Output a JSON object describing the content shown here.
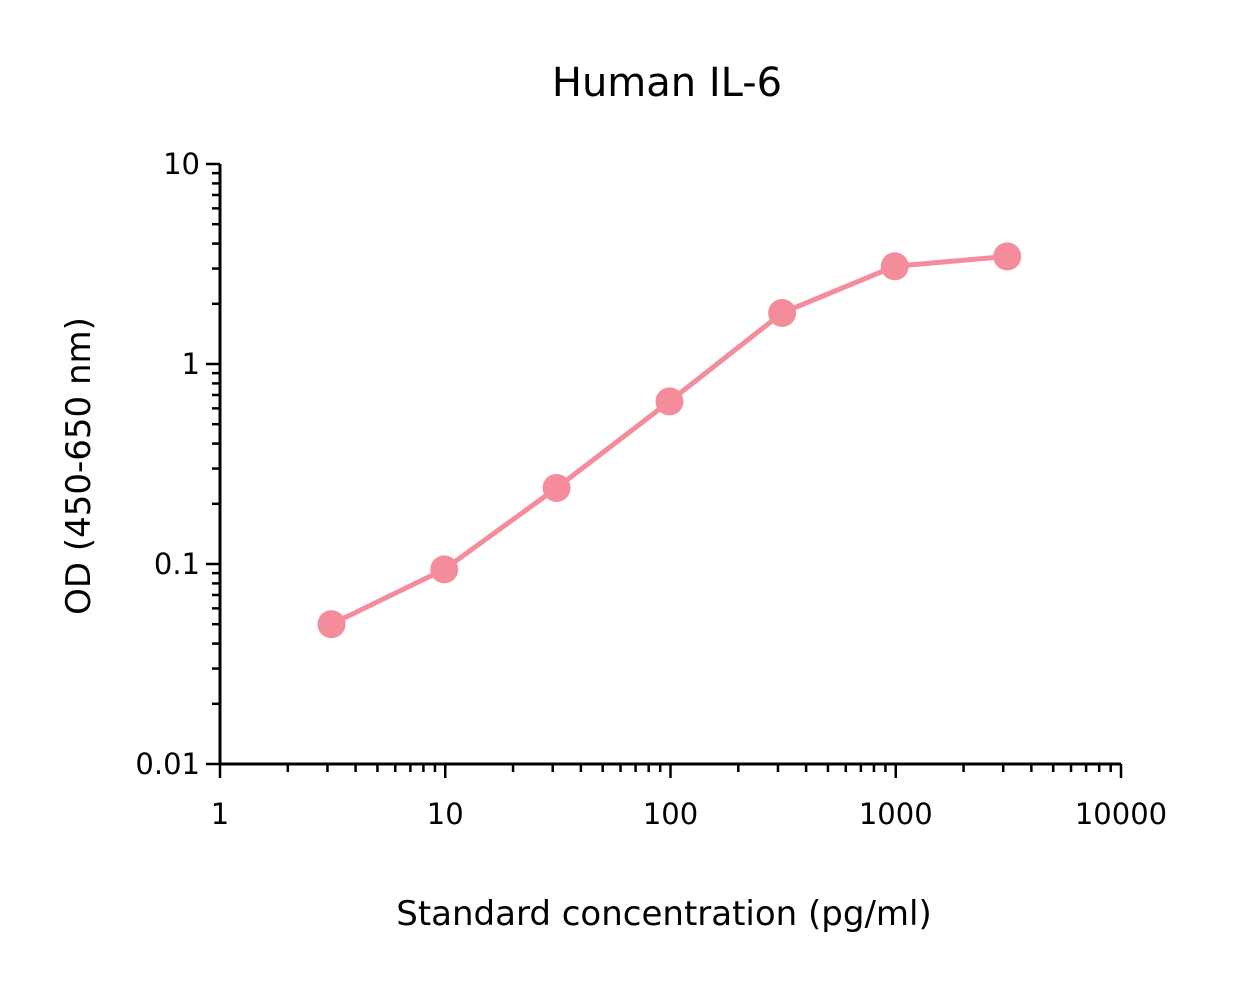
{
  "chart_data": {
    "type": "line",
    "title": "Human IL-6",
    "xlabel": "Standard concentration (pg/ml)",
    "ylabel": "OD (450-650 nm)",
    "xscale": "log",
    "yscale": "log",
    "xlim": [
      1,
      10000
    ],
    "ylim": [
      0.01,
      10
    ],
    "x_ticks": [
      "1",
      "10",
      "100",
      "1000",
      "10000"
    ],
    "y_ticks": [
      "0.01",
      "0.1",
      "1",
      "10"
    ],
    "grid": false,
    "legend": "none",
    "series": [
      {
        "color": "#f48c9c",
        "markers": true,
        "x": [
          3.125,
          9.9,
          31.2,
          99.0,
          313.0,
          990.0,
          3125.0
        ],
        "y": [
          0.05,
          0.094,
          0.24,
          0.65,
          1.8,
          3.08,
          3.45
        ]
      }
    ]
  }
}
